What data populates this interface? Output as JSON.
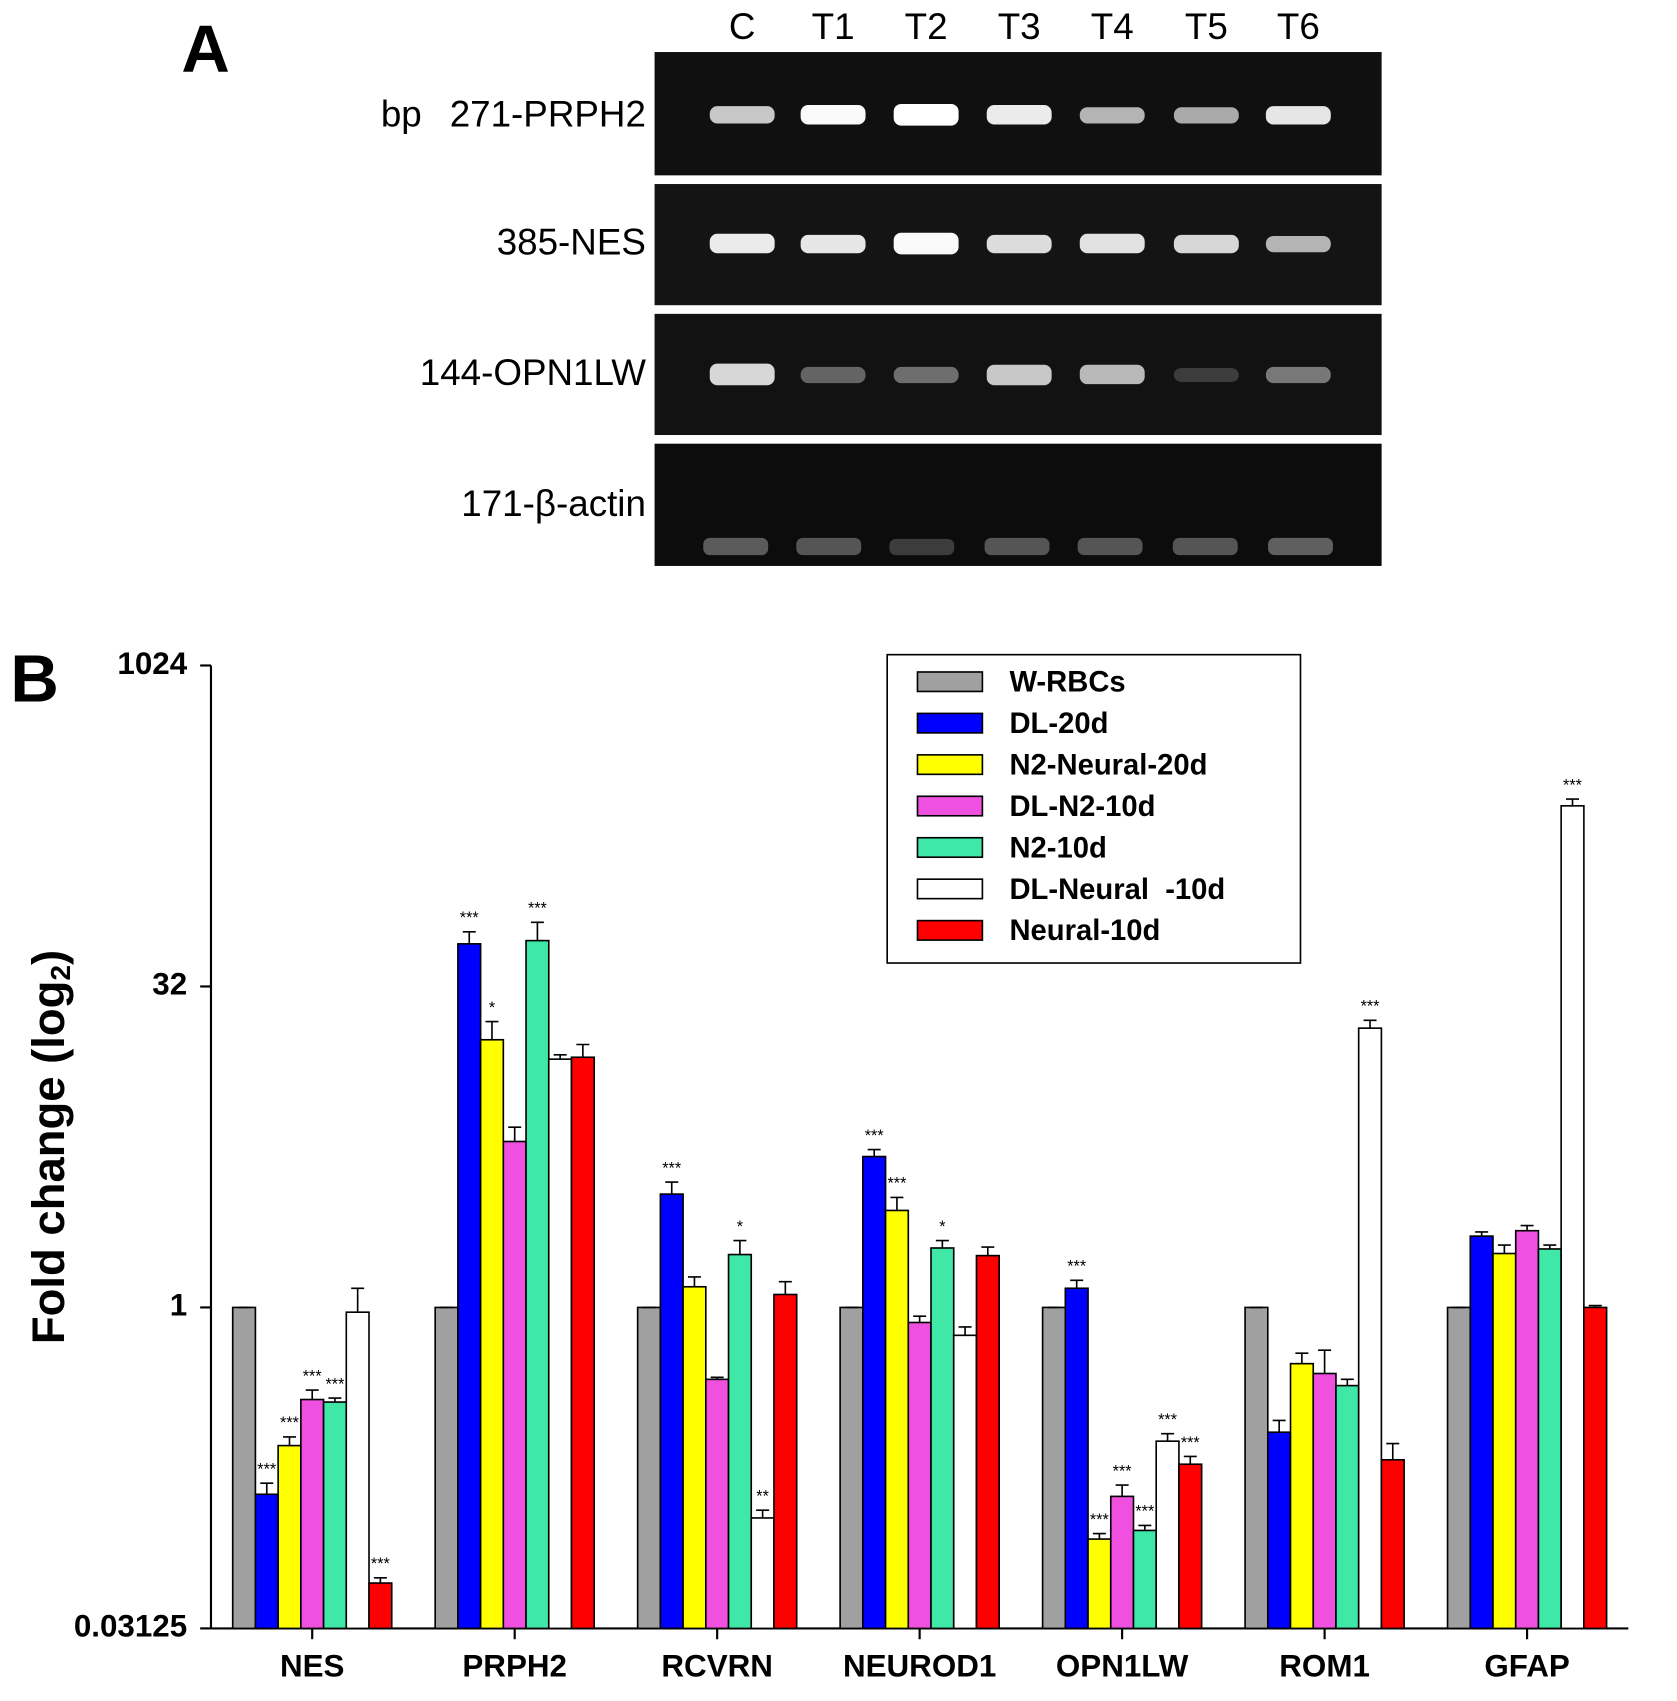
{
  "gel": {
    "panel_label": "A",
    "unit": "bp",
    "lanes": [
      "C",
      "T1",
      "T2",
      "T3",
      "T4",
      "T5",
      "T6"
    ],
    "rows": [
      "271-PRPH2",
      "385-NES",
      "144-OPN1LW",
      "171-β-actin"
    ]
  },
  "chart_data": {
    "type": "bar",
    "panel_label": "B",
    "ylabel": [
      "Fold change (log",
      "2",
      ")"
    ],
    "categories": [
      "NES",
      "PRPH2",
      "RCVRN",
      "NEUROD1",
      "OPN1LW",
      "ROM1",
      "GFAP"
    ],
    "yscale": "log",
    "log_base": 2,
    "ylim": [
      0.03125,
      1024
    ],
    "yticks": [
      0.03125,
      1,
      32,
      1024
    ],
    "legend": "upper-right",
    "series": [
      {
        "name": "W-RBCs",
        "color": "#a0a0a0",
        "values": [
          1,
          1,
          1,
          1,
          1,
          1,
          1
        ],
        "errors": [
          0,
          0,
          0,
          0,
          0,
          0,
          0
        ],
        "significance": [
          null,
          null,
          null,
          null,
          null,
          null,
          null
        ]
      },
      {
        "name": "DL-20d",
        "color": "#0000ff",
        "values": [
          0.133,
          50.7,
          3.4,
          5.1,
          1.23,
          0.26,
          2.16
        ],
        "errors": [
          0.017,
          7,
          0.47,
          0.4,
          0.11,
          0.035,
          0.1
        ],
        "significance": [
          "***",
          "***",
          "***",
          "***",
          "***",
          null,
          null
        ]
      },
      {
        "name": "N2-Neural-20d",
        "color": "#ffff00",
        "values": [
          0.225,
          18,
          1.25,
          2.85,
          0.082,
          0.545,
          1.79
        ],
        "errors": [
          0.022,
          3.9,
          0.14,
          0.43,
          0.005,
          0.065,
          0.17
        ],
        "significance": [
          "***",
          "*",
          null,
          "***",
          "***",
          null,
          null
        ]
      },
      {
        "name": "DL-N2-10d",
        "color": "#f050e0",
        "values": [
          0.37,
          6.0,
          0.46,
          0.85,
          0.13,
          0.49,
          2.29
        ],
        "errors": [
          0.04,
          1,
          0.01,
          0.06,
          0.017,
          0.14,
          0.13
        ],
        "significance": [
          "***",
          null,
          null,
          null,
          "***",
          null,
          null
        ]
      },
      {
        "name": "N2-10d",
        "color": "#40e8a8",
        "values": [
          0.36,
          52.5,
          1.77,
          1.9,
          0.09,
          0.43,
          1.88
        ],
        "errors": [
          0.016,
          11.5,
          0.29,
          0.16,
          0.005,
          0.03,
          0.08
        ],
        "significance": [
          "***",
          "***",
          "*",
          "*",
          "***",
          null,
          null
        ]
      },
      {
        "name": "DL-Neural  -10d",
        "color": "#ffffff",
        "values": [
          0.95,
          14.6,
          0.103,
          0.74,
          0.236,
          20.4,
          225
        ],
        "errors": [
          0.28,
          0.7,
          0.009,
          0.07,
          0.02,
          1.8,
          17
        ],
        "significance": [
          null,
          null,
          "**",
          null,
          "***",
          "***",
          "***"
        ]
      },
      {
        "name": "Neural-10d",
        "color": "#ff0000",
        "values": [
          0.051,
          14.9,
          1.15,
          1.75,
          0.184,
          0.193,
          1.0
        ],
        "errors": [
          0.003,
          2.2,
          0.17,
          0.17,
          0.016,
          0.037,
          0.02
        ],
        "significance": [
          "***",
          null,
          null,
          null,
          "***",
          null,
          null
        ]
      }
    ]
  }
}
